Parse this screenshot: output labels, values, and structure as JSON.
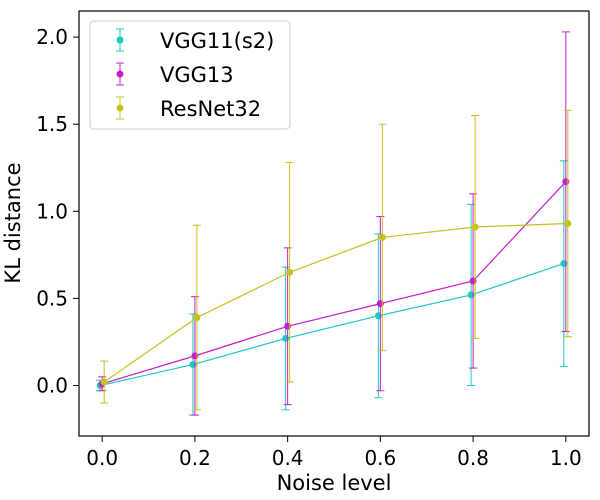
{
  "chart_data": {
    "type": "line",
    "title": "",
    "xlabel": "Noise level",
    "ylabel": "KL distance",
    "xlim": [
      -0.05,
      1.05
    ],
    "ylim": [
      -0.29,
      2.15
    ],
    "xticks": [
      0.0,
      0.2,
      0.4,
      0.6,
      0.8,
      1.0
    ],
    "xtick_labels": [
      "0.0",
      "0.2",
      "0.4",
      "0.6",
      "0.8",
      "1.0"
    ],
    "yticks": [
      0.0,
      0.5,
      1.0,
      1.5,
      2.0
    ],
    "ytick_labels": [
      "0.0",
      "0.5",
      "1.0",
      "1.5",
      "2.0"
    ],
    "legend_position": "top-left",
    "grid": false,
    "series": [
      {
        "name": "VGG11(s2)",
        "color": "#1ec8c0",
        "x": [
          0.0,
          0.2,
          0.4,
          0.6,
          0.8,
          1.0
        ],
        "y": [
          0.0,
          0.12,
          0.27,
          0.4,
          0.52,
          0.7
        ],
        "err": [
          0.03,
          0.29,
          0.41,
          0.47,
          0.52,
          0.59
        ]
      },
      {
        "name": "VGG13",
        "color": "#c81ec8",
        "x": [
          0.0,
          0.2,
          0.4,
          0.6,
          0.8,
          1.0
        ],
        "y": [
          0.01,
          0.17,
          0.34,
          0.47,
          0.6,
          1.17
        ],
        "err": [
          0.04,
          0.34,
          0.45,
          0.5,
          0.5,
          0.86
        ]
      },
      {
        "name": "ResNet32",
        "color": "#c8c01e",
        "x": [
          0.0,
          0.2,
          0.4,
          0.6,
          0.8,
          1.0
        ],
        "y": [
          0.02,
          0.39,
          0.65,
          0.85,
          0.91,
          0.93
        ],
        "err": [
          0.12,
          0.53,
          0.63,
          0.65,
          0.64,
          0.65
        ]
      }
    ]
  }
}
